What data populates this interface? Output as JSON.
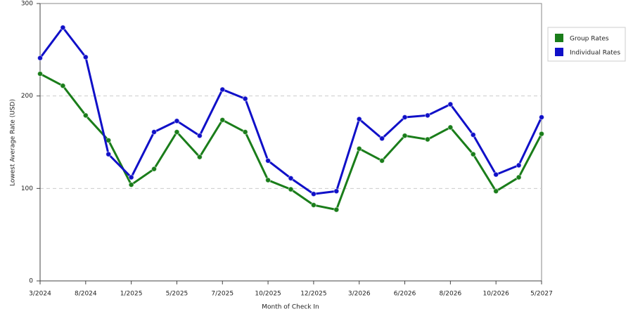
{
  "chart_data": {
    "type": "line",
    "x_label": "Month of Check In",
    "y_label": "Lowest Average Rate (USD)",
    "categories": [
      "3/2024",
      null,
      "8/2024",
      null,
      "1/2025",
      null,
      "5/2025",
      null,
      "7/2025",
      null,
      "10/2025",
      null,
      "12/2025",
      null,
      "3/2026",
      null,
      "6/2026",
      null,
      "8/2026",
      null,
      "10/2026",
      null,
      "5/2027"
    ],
    "series": [
      {
        "name": "Group Rates",
        "color": "#1a7d1a",
        "values": [
          224,
          211,
          179,
          152,
          104,
          121,
          161,
          134,
          174,
          161,
          109,
          99,
          82,
          77,
          143,
          130,
          157,
          153,
          166,
          137,
          97,
          112,
          159
        ]
      },
      {
        "name": "Individual Rates",
        "color": "#1010c8",
        "values": [
          241,
          274,
          242,
          137,
          112,
          161,
          173,
          157,
          207,
          197,
          130,
          111,
          94,
          97,
          175,
          154,
          177,
          179,
          191,
          158,
          115,
          125,
          177
        ]
      }
    ],
    "ylim": [
      0,
      300
    ],
    "yticks": [
      0,
      100,
      200,
      300
    ],
    "grid": true,
    "legend": "right"
  }
}
